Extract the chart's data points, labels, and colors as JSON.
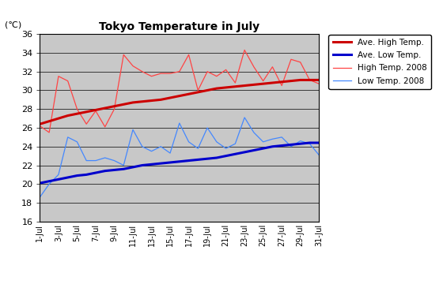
{
  "title": "Tokyo Temperature in July",
  "ylabel": "(℃)",
  "ylim": [
    16,
    36
  ],
  "yticks": [
    16,
    18,
    20,
    22,
    24,
    26,
    28,
    30,
    32,
    34,
    36
  ],
  "x_labels": [
    "1-Jul",
    "3-Jul",
    "5-Jul",
    "7-Jul",
    "9-Jul",
    "11-Jul",
    "13-Jul",
    "15-Jul",
    "17-Jul",
    "19-Jul",
    "21-Jul",
    "23-Jul",
    "25-Jul",
    "27-Jul",
    "29-Jul",
    "31-Jul"
  ],
  "days": [
    1,
    2,
    3,
    4,
    5,
    6,
    7,
    8,
    9,
    10,
    11,
    12,
    13,
    14,
    15,
    16,
    17,
    18,
    19,
    20,
    21,
    22,
    23,
    24,
    25,
    26,
    27,
    28,
    29,
    30,
    31
  ],
  "ave_high": [
    26.4,
    26.7,
    27.0,
    27.3,
    27.5,
    27.7,
    27.9,
    28.1,
    28.3,
    28.5,
    28.7,
    28.8,
    28.9,
    29.0,
    29.2,
    29.4,
    29.6,
    29.8,
    30.0,
    30.2,
    30.3,
    30.4,
    30.5,
    30.6,
    30.7,
    30.8,
    30.9,
    31.0,
    31.1,
    31.1,
    31.1
  ],
  "ave_low": [
    20.1,
    20.3,
    20.5,
    20.7,
    20.9,
    21.0,
    21.2,
    21.4,
    21.5,
    21.6,
    21.8,
    22.0,
    22.1,
    22.2,
    22.3,
    22.4,
    22.5,
    22.6,
    22.7,
    22.8,
    23.0,
    23.2,
    23.4,
    23.6,
    23.8,
    24.0,
    24.1,
    24.2,
    24.3,
    24.4,
    24.4
  ],
  "high_2008": [
    26.2,
    25.5,
    31.5,
    31.0,
    28.0,
    26.4,
    27.8,
    26.1,
    28.0,
    33.8,
    32.6,
    32.0,
    31.5,
    31.8,
    31.8,
    32.0,
    33.8,
    30.0,
    32.0,
    31.5,
    32.2,
    30.8,
    34.3,
    32.5,
    31.0,
    32.5,
    30.5,
    33.3,
    33.0,
    31.1,
    30.7
  ],
  "low_2008": [
    18.6,
    20.0,
    21.0,
    25.0,
    24.5,
    22.5,
    22.5,
    22.8,
    22.5,
    22.0,
    25.8,
    24.0,
    23.5,
    24.0,
    23.3,
    26.5,
    24.5,
    23.8,
    26.0,
    24.5,
    23.8,
    24.3,
    27.1,
    25.5,
    24.5,
    24.8,
    25.0,
    24.0,
    24.6,
    24.3,
    23.1
  ],
  "ave_high_color": "#cc0000",
  "ave_low_color": "#0000cc",
  "high_2008_color": "#ff4444",
  "low_2008_color": "#4488ff",
  "bg_color": "#c8c8c8",
  "legend_labels": [
    "Ave. High Temp.",
    "Ave. Low Temp.",
    "High Temp. 2008",
    "Low Temp. 2008"
  ]
}
